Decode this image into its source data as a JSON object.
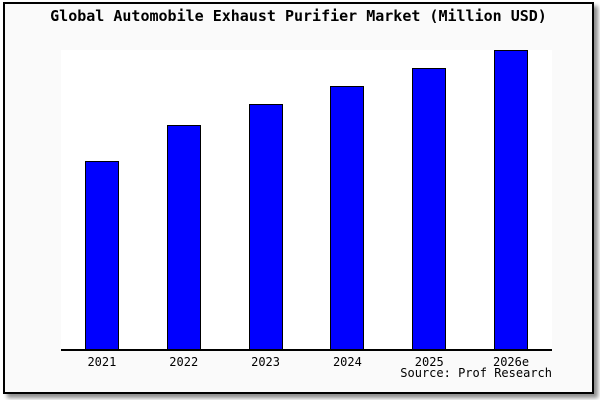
{
  "chart_data": {
    "type": "bar",
    "title": "Global Automobile Exhaust Purifier Market (Million USD)",
    "categories": [
      "2021",
      "2022",
      "2023",
      "2024",
      "2025",
      "2026e"
    ],
    "values": [
      63,
      75,
      82,
      88,
      94,
      100
    ],
    "values_note": "No y-axis scale or data labels shown in the chart; values are estimated relative bar heights as a percent of the tallest bar (2026e = 100).",
    "xlabel": "",
    "ylabel": "",
    "yaxis_visible": false,
    "grid": false,
    "legend": false,
    "source_note": "Source: Prof Research",
    "bar_color": "#0000ff",
    "bar_border_color": "#000000",
    "plot_background": "#ffffff",
    "window_background": "#fafafa",
    "axis_color": "#000000"
  }
}
